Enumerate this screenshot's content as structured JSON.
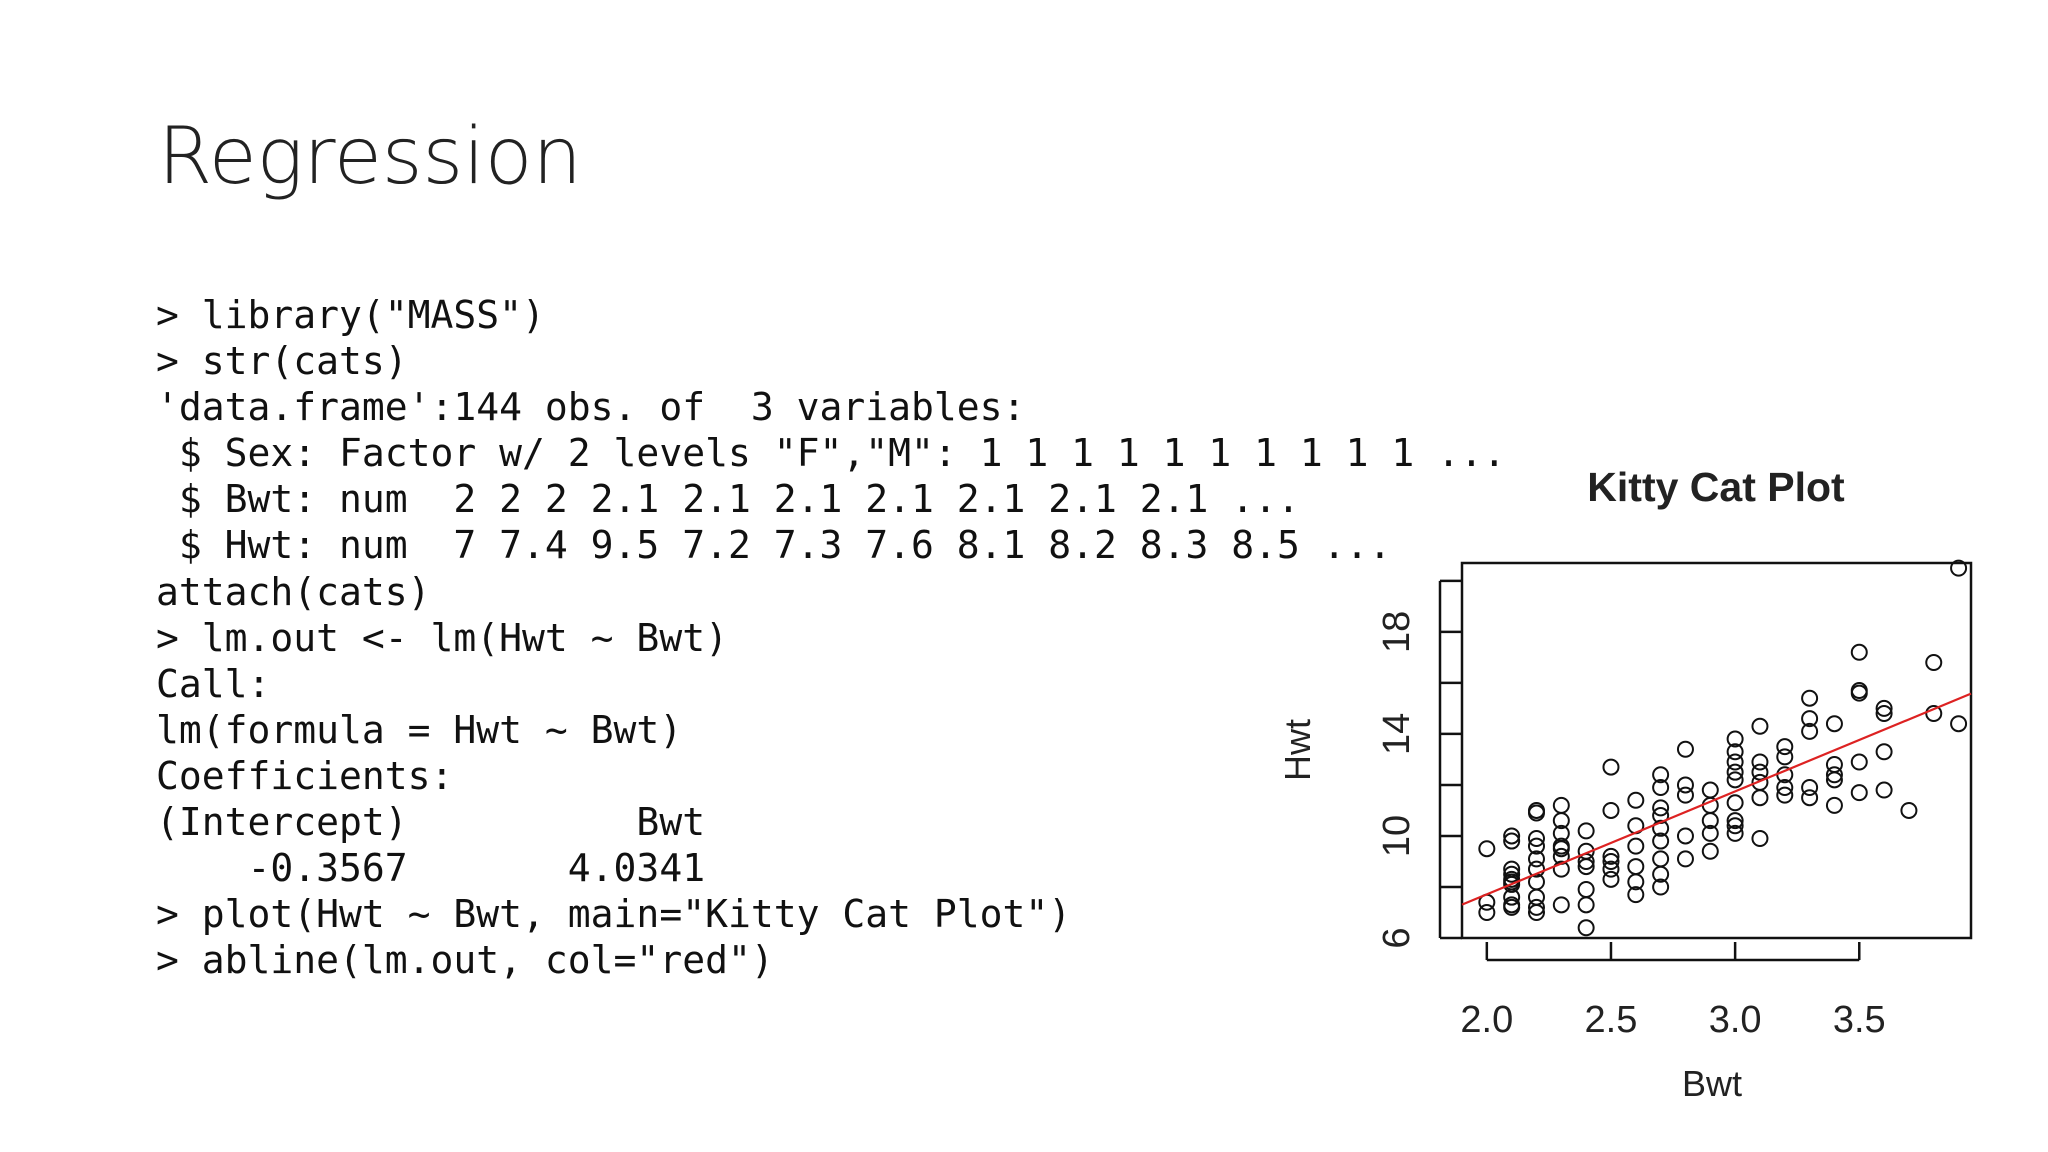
{
  "slide": {
    "title": "Regression",
    "code_lines": [
      "> library(\"MASS\")",
      "> str(cats)",
      "'data.frame':144 obs. of  3 variables:",
      " $ Sex: Factor w/ 2 levels \"F\",\"M\": 1 1 1 1 1 1 1 1 1 1 ...",
      " $ Bwt: num  2 2 2 2.1 2.1 2.1 2.1 2.1 2.1 2.1 ...",
      " $ Hwt: num  7 7.4 9.5 7.2 7.3 7.6 8.1 8.2 8.3 8.5 ...",
      "attach(cats)",
      "> lm.out <- lm(Hwt ~ Bwt)",
      "Call:",
      "lm(formula = Hwt ~ Bwt)",
      "Coefficients:",
      "(Intercept)          Bwt",
      "    -0.3567       4.0341",
      "> plot(Hwt ~ Bwt, main=\"Kitty Cat Plot\")",
      "> abline(lm.out, col=\"red\")"
    ]
  },
  "chart_data": {
    "type": "scatter",
    "title": "Kitty Cat Plot",
    "xlabel": "Bwt",
    "ylabel": "Hwt",
    "xlim": [
      1.9,
      3.95
    ],
    "ylim": [
      6.0,
      20.7
    ],
    "x_ticks": [
      2.0,
      2.5,
      3.0,
      3.5
    ],
    "x_tick_labels": [
      "2.0",
      "2.5",
      "3.0",
      "3.5"
    ],
    "y_ticks": [
      6,
      8,
      10,
      12,
      14,
      16,
      18,
      20
    ],
    "y_tick_labels": [
      "6",
      "",
      "10",
      "",
      "14",
      "",
      "18",
      ""
    ],
    "grid": false,
    "point_color": "#111111",
    "line_color": "#dd2222",
    "regression_line": {
      "intercept": -0.3567,
      "slope": 4.0341
    },
    "points": [
      [
        2.0,
        7.0
      ],
      [
        2.0,
        7.4
      ],
      [
        2.0,
        9.5
      ],
      [
        2.1,
        7.2
      ],
      [
        2.1,
        7.3
      ],
      [
        2.1,
        7.6
      ],
      [
        2.1,
        8.1
      ],
      [
        2.1,
        8.2
      ],
      [
        2.1,
        8.3
      ],
      [
        2.1,
        8.5
      ],
      [
        2.1,
        8.7
      ],
      [
        2.1,
        9.8
      ],
      [
        2.1,
        10.0
      ],
      [
        2.2,
        7.0
      ],
      [
        2.2,
        7.2
      ],
      [
        2.2,
        7.6
      ],
      [
        2.2,
        8.2
      ],
      [
        2.2,
        8.7
      ],
      [
        2.2,
        9.1
      ],
      [
        2.2,
        9.6
      ],
      [
        2.2,
        9.9
      ],
      [
        2.2,
        10.9
      ],
      [
        2.2,
        11.0
      ],
      [
        2.3,
        7.3
      ],
      [
        2.3,
        8.7
      ],
      [
        2.3,
        9.2
      ],
      [
        2.3,
        9.5
      ],
      [
        2.3,
        9.6
      ],
      [
        2.3,
        10.1
      ],
      [
        2.3,
        10.6
      ],
      [
        2.3,
        11.2
      ],
      [
        2.4,
        6.4
      ],
      [
        2.4,
        7.3
      ],
      [
        2.4,
        7.9
      ],
      [
        2.4,
        8.8
      ],
      [
        2.4,
        9.0
      ],
      [
        2.4,
        9.4
      ],
      [
        2.4,
        10.2
      ],
      [
        2.5,
        8.3
      ],
      [
        2.5,
        8.7
      ],
      [
        2.5,
        9.0
      ],
      [
        2.5,
        9.2
      ],
      [
        2.5,
        11.0
      ],
      [
        2.5,
        12.7
      ],
      [
        2.6,
        7.7
      ],
      [
        2.6,
        8.2
      ],
      [
        2.6,
        8.8
      ],
      [
        2.6,
        9.6
      ],
      [
        2.6,
        10.4
      ],
      [
        2.6,
        11.4
      ],
      [
        2.7,
        8.0
      ],
      [
        2.7,
        8.5
      ],
      [
        2.7,
        9.1
      ],
      [
        2.7,
        9.8
      ],
      [
        2.7,
        10.3
      ],
      [
        2.7,
        10.8
      ],
      [
        2.7,
        11.1
      ],
      [
        2.7,
        11.9
      ],
      [
        2.7,
        12.4
      ],
      [
        2.8,
        9.1
      ],
      [
        2.8,
        10.0
      ],
      [
        2.8,
        11.6
      ],
      [
        2.8,
        12.0
      ],
      [
        2.8,
        13.4
      ],
      [
        2.9,
        9.4
      ],
      [
        2.9,
        10.1
      ],
      [
        2.9,
        10.6
      ],
      [
        2.9,
        11.2
      ],
      [
        2.9,
        11.8
      ],
      [
        3.0,
        10.1
      ],
      [
        3.0,
        10.4
      ],
      [
        3.0,
        10.6
      ],
      [
        3.0,
        11.3
      ],
      [
        3.0,
        12.2
      ],
      [
        3.0,
        12.5
      ],
      [
        3.0,
        12.9
      ],
      [
        3.0,
        13.3
      ],
      [
        3.0,
        13.8
      ],
      [
        3.1,
        9.9
      ],
      [
        3.1,
        11.5
      ],
      [
        3.1,
        12.1
      ],
      [
        3.1,
        12.5
      ],
      [
        3.1,
        12.9
      ],
      [
        3.1,
        14.3
      ],
      [
        3.2,
        11.6
      ],
      [
        3.2,
        11.9
      ],
      [
        3.2,
        12.4
      ],
      [
        3.2,
        13.1
      ],
      [
        3.2,
        13.5
      ],
      [
        3.3,
        11.5
      ],
      [
        3.3,
        11.9
      ],
      [
        3.3,
        14.1
      ],
      [
        3.3,
        14.6
      ],
      [
        3.3,
        15.4
      ],
      [
        3.4,
        11.2
      ],
      [
        3.4,
        12.2
      ],
      [
        3.4,
        12.4
      ],
      [
        3.4,
        12.8
      ],
      [
        3.4,
        14.4
      ],
      [
        3.5,
        11.7
      ],
      [
        3.5,
        12.9
      ],
      [
        3.5,
        15.6
      ],
      [
        3.5,
        15.7
      ],
      [
        3.5,
        17.2
      ],
      [
        3.6,
        11.8
      ],
      [
        3.6,
        13.3
      ],
      [
        3.6,
        14.8
      ],
      [
        3.6,
        15.0
      ],
      [
        3.7,
        11.0
      ],
      [
        3.8,
        14.8
      ],
      [
        3.8,
        16.8
      ],
      [
        3.9,
        14.4
      ],
      [
        3.9,
        20.5
      ]
    ]
  }
}
